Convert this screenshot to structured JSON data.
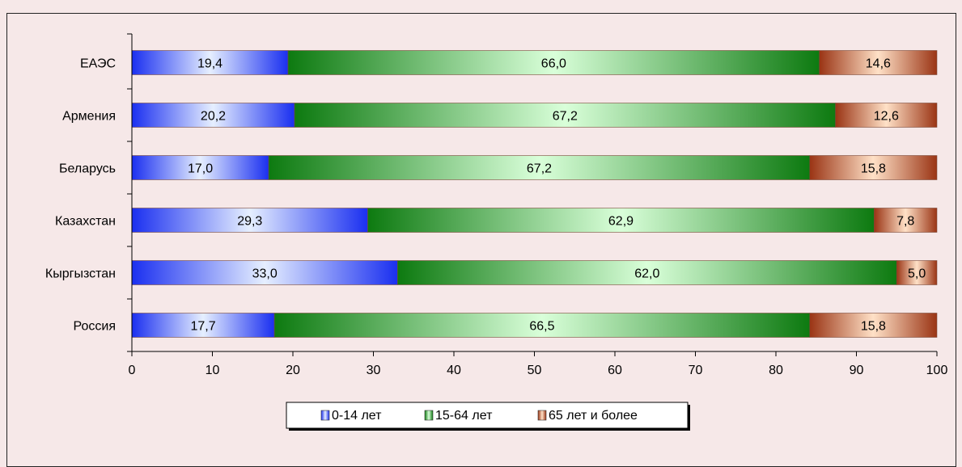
{
  "chart_data": {
    "type": "bar",
    "orientation": "horizontal",
    "stacked": true,
    "categories": [
      "ЕАЭС",
      "Армения",
      "Беларусь",
      "Казахстан",
      "Кыргызстан",
      "Россия"
    ],
    "series": [
      {
        "name": "0-14 лет",
        "values": [
          19.4,
          20.2,
          17.0,
          29.3,
          33.0,
          17.7
        ],
        "labels": [
          "19,4",
          "20,2",
          "17,0",
          "29,3",
          "33,0",
          "17,7"
        ],
        "color": "#1a2ff0",
        "highlight": "#e6efff"
      },
      {
        "name": "15-64 лет",
        "values": [
          66.0,
          67.2,
          67.2,
          62.9,
          62.0,
          66.5
        ],
        "labels": [
          "66,0",
          "67,2",
          "67,2",
          "62,9",
          "62,0",
          "66,5"
        ],
        "color": "#0d7a10",
        "highlight": "#d9ffd9"
      },
      {
        "name": "65 лет и более",
        "values": [
          14.6,
          12.6,
          15.8,
          7.8,
          5.0,
          15.8
        ],
        "labels": [
          "14,6",
          "12,6",
          "15,8",
          "7,8",
          "5,0",
          "15,8"
        ],
        "color": "#9a3414",
        "highlight": "#ffe1c7"
      }
    ],
    "xlim": [
      0,
      100
    ],
    "xticks": [
      "0",
      "10",
      "20",
      "30",
      "40",
      "50",
      "60",
      "70",
      "80",
      "90",
      "100"
    ],
    "legend_position": "bottom-center",
    "grid": false
  }
}
